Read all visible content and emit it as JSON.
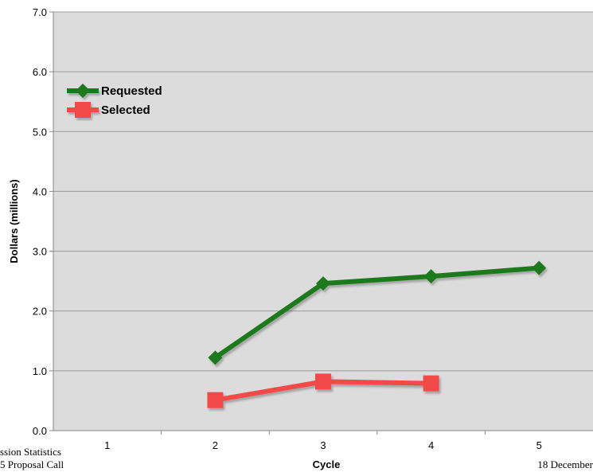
{
  "chart_data": {
    "type": "line",
    "title": "",
    "xlabel": "Cycle",
    "ylabel": "Dollars (millions)",
    "categories": [
      "1",
      "2",
      "3",
      "4",
      "5"
    ],
    "ylim": [
      0.0,
      7.0
    ],
    "yticks": [
      "0.0",
      "1.0",
      "2.0",
      "3.0",
      "4.0",
      "5.0",
      "6.0",
      "7.0"
    ],
    "grid": true,
    "legend_placement": "top-left",
    "series": [
      {
        "name": "Requested",
        "color": "#1a7a1a",
        "marker": "diamond",
        "values": [
          null,
          1.22,
          2.46,
          2.58,
          2.72
        ]
      },
      {
        "name": "Selected",
        "color": "#f24a4a",
        "marker": "square",
        "values": [
          null,
          0.51,
          0.82,
          0.79,
          null
        ]
      }
    ]
  },
  "footer": {
    "left_line1": "ssion Statistics",
    "left_line2": "5 Proposal Call",
    "right": "18 December"
  }
}
